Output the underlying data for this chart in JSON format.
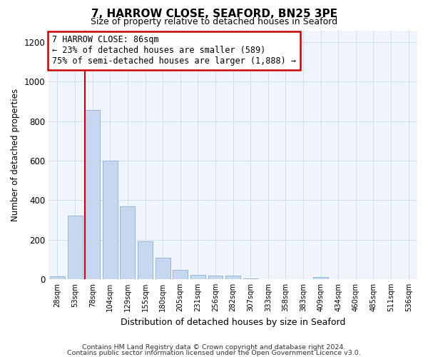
{
  "title": "7, HARROW CLOSE, SEAFORD, BN25 3PE",
  "subtitle": "Size of property relative to detached houses in Seaford",
  "xlabel": "Distribution of detached houses by size in Seaford",
  "ylabel": "Number of detached properties",
  "footnote1": "Contains HM Land Registry data © Crown copyright and database right 2024.",
  "footnote2": "Contains public sector information licensed under the Open Government Licence v3.0.",
  "bar_color": "#c5d8f0",
  "bar_edge_color": "#8ab0d8",
  "annotation_box_color": "#cc0000",
  "vline_color": "#cc0000",
  "grid_color": "#d0dff0",
  "background_color": "#f0f5fc",
  "categories": [
    "28sqm",
    "53sqm",
    "78sqm",
    "104sqm",
    "129sqm",
    "155sqm",
    "180sqm",
    "205sqm",
    "231sqm",
    "256sqm",
    "282sqm",
    "307sqm",
    "333sqm",
    "358sqm",
    "383sqm",
    "409sqm",
    "434sqm",
    "460sqm",
    "485sqm",
    "511sqm",
    "536sqm"
  ],
  "values": [
    15,
    320,
    855,
    600,
    370,
    190,
    110,
    48,
    22,
    17,
    18,
    5,
    0,
    0,
    0,
    10,
    0,
    0,
    0,
    0,
    0
  ],
  "ylim": [
    0,
    1260
  ],
  "yticks": [
    0,
    200,
    400,
    600,
    800,
    1000,
    1200
  ],
  "annotation_line1": "7 HARROW CLOSE: 86sqm",
  "annotation_line2": "← 23% of detached houses are smaller (589)",
  "annotation_line3": "75% of semi-detached houses are larger (1,888) →",
  "vline_bin_index": 2,
  "figsize": [
    6.0,
    5.0
  ],
  "dpi": 100
}
